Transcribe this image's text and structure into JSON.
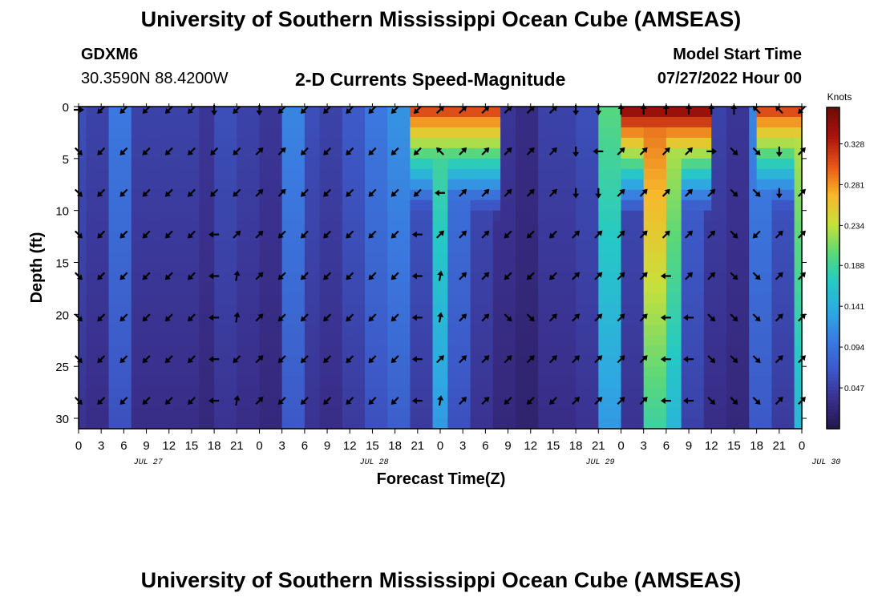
{
  "header": {
    "title": "University of Southern Mississippi Ocean Cube (AMSEAS)",
    "station": "GDXM6",
    "coords": "30.3590N  88.4200W",
    "product": "2-D Currents Speed-Magnitude",
    "start_label": "Model Start Time",
    "start_value": "07/27/2022 Hour 00"
  },
  "footer": {
    "title": "University of Southern Mississippi Ocean Cube (AMSEAS)"
  },
  "chart_data": {
    "type": "heatmap",
    "title": "2-D Currents Speed-Magnitude",
    "xlabel": "Forecast Time(Z)",
    "ylabel": "Depth (ft)",
    "ylim": [
      31,
      0
    ],
    "y_ticks": [
      "0",
      "5",
      "10",
      "15",
      "20",
      "25",
      "30"
    ],
    "x_ticks": [
      "0",
      "3",
      "6",
      "9",
      "12",
      "15",
      "18",
      "21",
      "0",
      "3",
      "6",
      "9",
      "12",
      "15",
      "18",
      "21",
      "0",
      "3",
      "6",
      "9",
      "12",
      "15",
      "18",
      "21",
      "0",
      "3",
      "6",
      "9",
      "12",
      "15",
      "18",
      "21",
      "0"
    ],
    "x_hours": [
      0,
      3,
      6,
      9,
      12,
      15,
      18,
      21,
      24,
      27,
      30,
      33,
      36,
      39,
      42,
      45,
      48,
      51,
      54,
      57,
      60,
      63,
      66,
      69,
      72,
      75,
      78,
      81,
      84,
      87,
      90,
      93,
      96
    ],
    "date_labels": [
      {
        "label": "JUL 27",
        "hour": 12
      },
      {
        "label": "JUL 28",
        "hour": 42
      },
      {
        "label": "JUL 29",
        "hour": 72
      },
      {
        "label": "JUL 30",
        "hour": 102
      }
    ],
    "colorbar": {
      "unit": "Knots",
      "ticks": [
        "0.328",
        "0.281",
        "0.234",
        "0.188",
        "0.141",
        "0.094",
        "0.047"
      ],
      "tick_values": [
        0.328,
        0.281,
        0.234,
        0.188,
        0.141,
        0.094,
        0.047
      ],
      "range": [
        0,
        0.37
      ],
      "colors": [
        "#23164a",
        "#3a2f8c",
        "#3c58c6",
        "#3b7ae0",
        "#2fa8e2",
        "#25c9c6",
        "#5ad87a",
        "#c8e03a",
        "#f8b72a",
        "#e4561a",
        "#a7150c",
        "#6b0b08"
      ]
    },
    "depths": [
      0,
      4,
      8,
      12,
      16,
      20,
      24,
      28
    ],
    "vector_hours": [
      0,
      3,
      6,
      9,
      12,
      15,
      18,
      21,
      24,
      27,
      30,
      33,
      36,
      39,
      42,
      45,
      48,
      51,
      54,
      57,
      60,
      63,
      66,
      69,
      72,
      75,
      78,
      81,
      84,
      87,
      90,
      93,
      96
    ],
    "speed_profile_by_hour": [
      0.06,
      0.05,
      0.1,
      0.05,
      0.05,
      0.05,
      0.04,
      0.06,
      0.05,
      0.04,
      0.11,
      0.06,
      0.05,
      0.07,
      0.1,
      0.12,
      0.07,
      0.2,
      0.1,
      0.06,
      0.04,
      0.03,
      0.05,
      0.05,
      0.06,
      0.2,
      0.06,
      0.3,
      0.24,
      0.08,
      0.05,
      0.04,
      0.11,
      0.07,
      0.24
    ],
    "surface_boost_hours": [
      [
        44,
        56,
        0.32
      ],
      [
        72,
        84,
        0.36
      ],
      [
        90,
        96,
        0.32
      ]
    ],
    "vector_dirs_deg": [
      [
        0,
        225,
        225,
        225,
        225,
        225,
        270,
        225,
        270,
        225,
        225,
        225,
        225,
        225,
        225,
        225,
        45,
        45,
        45,
        45,
        45,
        45,
        270,
        270,
        90,
        90,
        90,
        90,
        90,
        90,
        135,
        135,
        225
      ],
      [
        315,
        225,
        225,
        225,
        225,
        225,
        225,
        225,
        45,
        45,
        225,
        225,
        225,
        225,
        225,
        225,
        135,
        45,
        45,
        45,
        45,
        45,
        270,
        180,
        45,
        45,
        45,
        45,
        0,
        315,
        315,
        270,
        45
      ],
      [
        315,
        225,
        225,
        225,
        225,
        225,
        225,
        225,
        45,
        45,
        225,
        225,
        225,
        225,
        225,
        225,
        180,
        45,
        45,
        45,
        45,
        45,
        270,
        270,
        45,
        45,
        45,
        45,
        45,
        315,
        315,
        270,
        45
      ],
      [
        315,
        225,
        225,
        225,
        225,
        225,
        180,
        45,
        45,
        225,
        225,
        225,
        225,
        225,
        225,
        180,
        45,
        45,
        45,
        225,
        225,
        225,
        45,
        45,
        45,
        45,
        45,
        45,
        45,
        315,
        225,
        45,
        45
      ],
      [
        315,
        225,
        225,
        225,
        225,
        225,
        180,
        80,
        45,
        225,
        225,
        225,
        225,
        225,
        225,
        180,
        80,
        45,
        45,
        225,
        225,
        225,
        45,
        45,
        45,
        45,
        180,
        45,
        45,
        315,
        315,
        45,
        45
      ],
      [
        315,
        225,
        225,
        225,
        225,
        225,
        180,
        80,
        45,
        225,
        225,
        225,
        225,
        225,
        225,
        180,
        80,
        45,
        45,
        315,
        315,
        45,
        45,
        45,
        45,
        45,
        180,
        180,
        315,
        315,
        315,
        45,
        45
      ],
      [
        315,
        225,
        225,
        225,
        225,
        225,
        180,
        225,
        45,
        225,
        225,
        225,
        225,
        225,
        225,
        180,
        45,
        45,
        45,
        45,
        45,
        45,
        45,
        45,
        45,
        45,
        180,
        180,
        315,
        315,
        315,
        45,
        45
      ],
      [
        315,
        225,
        225,
        225,
        225,
        225,
        180,
        80,
        45,
        225,
        225,
        225,
        225,
        225,
        225,
        180,
        80,
        45,
        45,
        225,
        225,
        225,
        45,
        45,
        45,
        45,
        180,
        180,
        315,
        315,
        315,
        45,
        45
      ]
    ]
  }
}
